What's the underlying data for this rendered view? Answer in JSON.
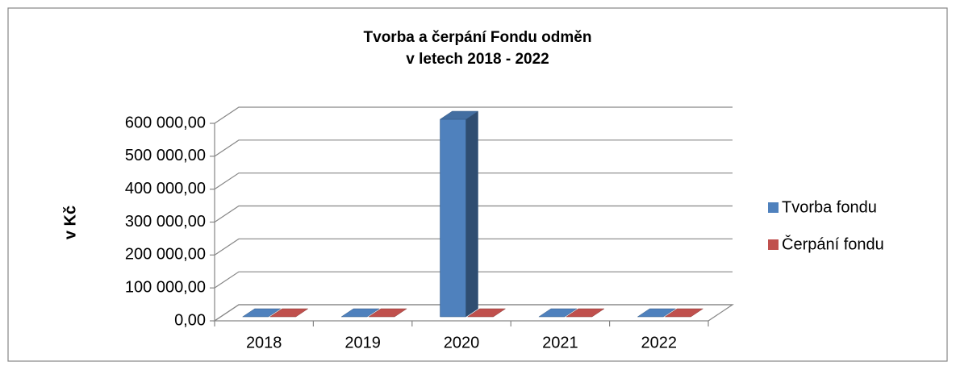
{
  "chart_data": {
    "type": "bar3d",
    "title": [
      "Tvorba a čerpání Fondu odměn",
      "v letech 2018 - 2022"
    ],
    "y_label": "v Kč",
    "categories": [
      "2018",
      "2019",
      "2020",
      "2021",
      "2022"
    ],
    "series": [
      {
        "name": "Tvorba fondu",
        "color": "#4f81bd",
        "values": [
          0,
          0,
          600000,
          0,
          0
        ]
      },
      {
        "name": "Čerpání fondu",
        "color": "#c0504d",
        "values": [
          0,
          0,
          0,
          0,
          0
        ]
      }
    ],
    "ylim": [
      0,
      600000
    ],
    "yticks": [
      {
        "value": 0,
        "label": "0,00"
      },
      {
        "value": 100000,
        "label": "100 000,00"
      },
      {
        "value": 200000,
        "label": "200 000,00"
      },
      {
        "value": 300000,
        "label": "300 000,00"
      },
      {
        "value": 400000,
        "label": "400 000,00"
      },
      {
        "value": 500000,
        "label": "500 000,00"
      },
      {
        "value": 600000,
        "label": "600 000,00"
      }
    ],
    "grid": true,
    "legend": "right"
  }
}
